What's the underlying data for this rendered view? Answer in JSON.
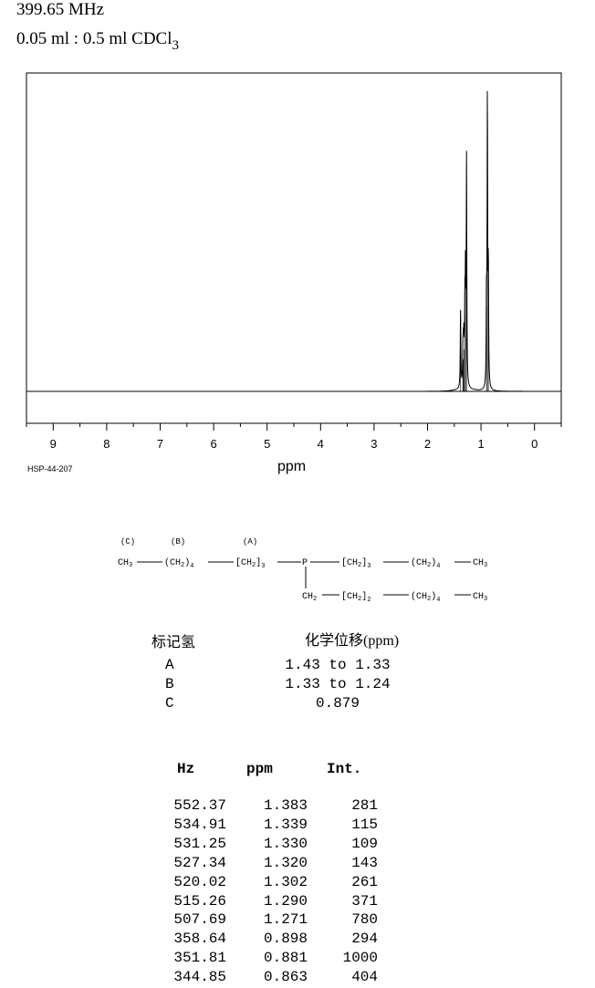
{
  "header": {
    "frequency": "399.65 MHz",
    "solvent_prefix": "0.05 ml : 0.5 ml CDCl",
    "solvent_sub": "3"
  },
  "spectrum_code": "HSP-44-207",
  "chart_data": {
    "type": "line",
    "xlabel": "ppm",
    "xlim": [
      9.5,
      -0.5
    ],
    "xticks": [
      9,
      8,
      7,
      6,
      5,
      4,
      3,
      2,
      1,
      0
    ],
    "x_reversed": true,
    "grid": false,
    "peaks": [
      {
        "hz": 552.37,
        "ppm": 1.383,
        "int": 281
      },
      {
        "hz": 534.91,
        "ppm": 1.339,
        "int": 115
      },
      {
        "hz": 531.25,
        "ppm": 1.33,
        "int": 109
      },
      {
        "hz": 527.34,
        "ppm": 1.32,
        "int": 143
      },
      {
        "hz": 520.02,
        "ppm": 1.302,
        "int": 261
      },
      {
        "hz": 515.26,
        "ppm": 1.29,
        "int": 371
      },
      {
        "hz": 507.69,
        "ppm": 1.271,
        "int": 780
      },
      {
        "hz": 358.64,
        "ppm": 0.898,
        "int": 294
      },
      {
        "hz": 351.81,
        "ppm": 0.881,
        "int": 1000
      },
      {
        "hz": 344.85,
        "ppm": 0.863,
        "int": 404
      }
    ]
  },
  "structure": {
    "labels": [
      "(C)",
      "(B)",
      "(A)"
    ],
    "ch3": "CH",
    "three": "3",
    "two": "2",
    "four": "4",
    "p": "P",
    "ch2_group": "(CH",
    "ch2_group_close": ")",
    "ch2_bracket": "[CH",
    "ch2_bracket_close": "]",
    "ch2": "CH"
  },
  "assignments": {
    "header_h": "标记氢",
    "header_shift": "化学位移(ppm)",
    "rows": [
      {
        "label": "A",
        "value": "1.43 to 1.33"
      },
      {
        "label": "B",
        "value": "1.33 to 1.24"
      },
      {
        "label": "C",
        "value": "0.879"
      }
    ]
  },
  "peak_table": {
    "headers": [
      "Hz",
      "ppm",
      "Int."
    ],
    "rows": [
      [
        "552.37",
        "1.383",
        "281"
      ],
      [
        "534.91",
        "1.339",
        "115"
      ],
      [
        "531.25",
        "1.330",
        "109"
      ],
      [
        "527.34",
        "1.320",
        "143"
      ],
      [
        "520.02",
        "1.302",
        "261"
      ],
      [
        "515.26",
        "1.290",
        "371"
      ],
      [
        "507.69",
        "1.271",
        "780"
      ],
      [
        "358.64",
        "0.898",
        "294"
      ],
      [
        "351.81",
        "0.881",
        "1000"
      ],
      [
        "344.85",
        "0.863",
        "404"
      ]
    ]
  }
}
